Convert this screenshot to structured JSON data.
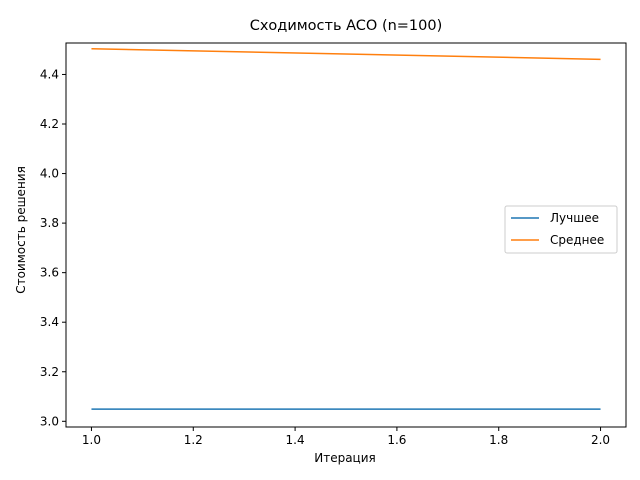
{
  "chart_data": {
    "type": "line",
    "title": "Сходимость ACO (n=100)",
    "xlabel": "Итерация",
    "ylabel": "Стоимость решения",
    "x": [
      1.0,
      2.0
    ],
    "xlim": [
      0.95,
      2.05
    ],
    "ylim": [
      2.977,
      4.527
    ],
    "xticks": [
      1.0,
      1.2,
      1.4,
      1.6,
      1.8,
      2.0
    ],
    "xtick_labels": [
      "1.0",
      "1.2",
      "1.4",
      "1.6",
      "1.8",
      "2.0"
    ],
    "yticks": [
      3.0,
      3.2,
      3.4,
      3.6,
      3.8,
      4.0,
      4.2,
      4.4
    ],
    "ytick_labels": [
      "3.0",
      "3.2",
      "3.4",
      "3.6",
      "3.8",
      "4.0",
      "4.2",
      "4.4"
    ],
    "grid": false,
    "legend_position": "center-right",
    "series": [
      {
        "name": "Лучшее",
        "color": "#1f77b4",
        "values": [
          3.049,
          3.049
        ]
      },
      {
        "name": "Среднее",
        "color": "#ff7f0e",
        "values": [
          4.504,
          4.461
        ]
      }
    ]
  }
}
